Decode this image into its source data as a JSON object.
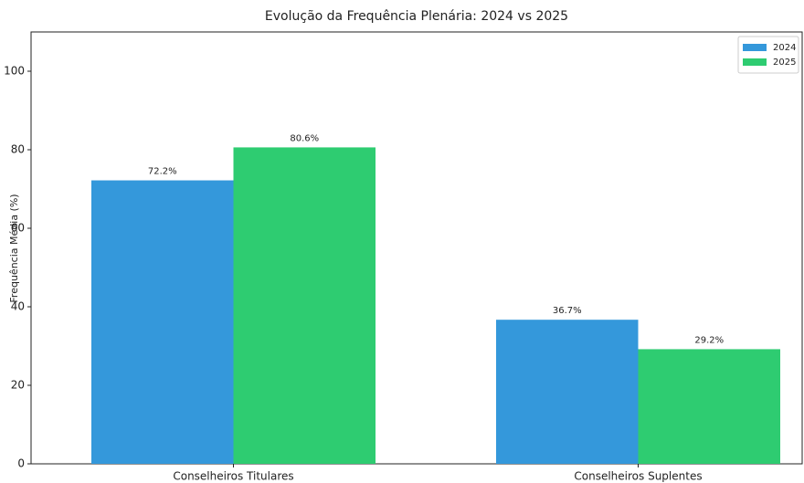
{
  "chart_data": {
    "type": "bar",
    "title": "Evolução da Frequência Plenária: 2024 vs 2025",
    "ylabel": "Frequência Média (%)",
    "categories": [
      "Conselheiros Titulares",
      "Conselheiros Suplentes"
    ],
    "series": [
      {
        "name": "2024",
        "color": "#3498db",
        "values": [
          72.2,
          36.7
        ],
        "value_labels": [
          "72.2%",
          "36.7%"
        ]
      },
      {
        "name": "2025",
        "color": "#2ecc71",
        "values": [
          80.6,
          29.2
        ],
        "value_labels": [
          "80.6%",
          "29.2%"
        ]
      }
    ],
    "ylim": [
      0,
      110
    ],
    "yticks": [
      0,
      20,
      40,
      60,
      80,
      100
    ],
    "legend": "upper right"
  }
}
